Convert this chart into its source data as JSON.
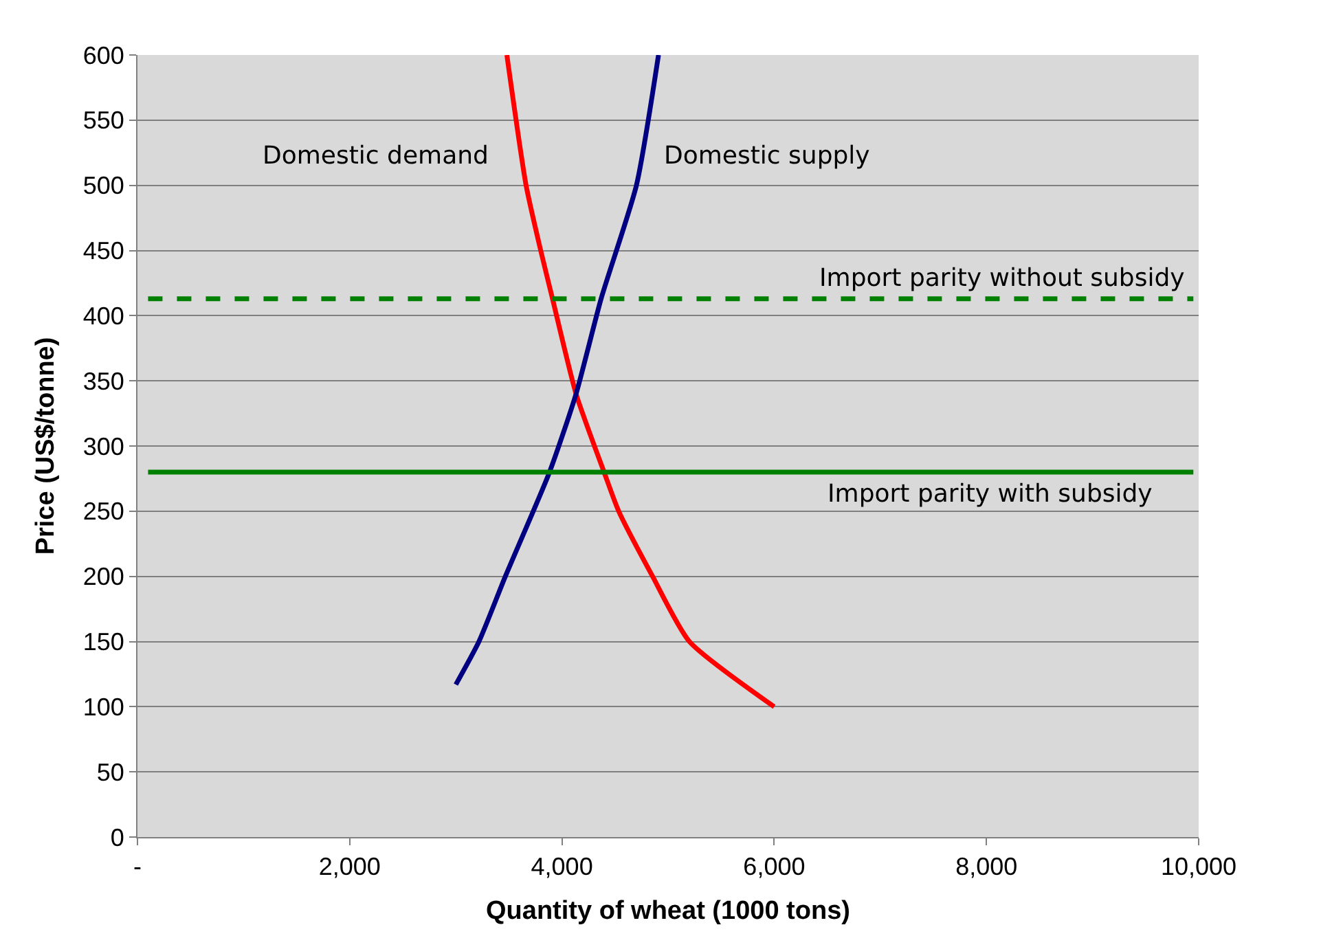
{
  "chart_data": {
    "type": "line",
    "xlabel": "Quantity of wheat (1000 tons)",
    "ylabel": "Price (US$/tonne)",
    "series": [
      {
        "name": "Domestic demand",
        "color": "#ff0000",
        "x": [
          3481,
          3662,
          3800,
          3911,
          4133,
          4397,
          4535,
          4854,
          5201,
          6000
        ],
        "values": [
          600,
          500,
          450,
          413,
          340,
          280,
          250,
          200,
          150,
          100
        ]
      },
      {
        "name": "Domestic supply",
        "color": "#000080",
        "x": [
          3000,
          3218,
          3467,
          3883,
          4133,
          4369,
          4702,
          4910
        ],
        "values": [
          117,
          150,
          200,
          280,
          340,
          413,
          500,
          600
        ]
      }
    ],
    "ref_lines": [
      {
        "axis": "y",
        "value": 413,
        "label": "Import parity without subsidy",
        "color": "#008000",
        "line_style": "dashed"
      },
      {
        "axis": "y",
        "value": 280,
        "label": "Import parity with subsidy",
        "color": "#008000",
        "line_style": "solid"
      }
    ],
    "xlim": [
      0,
      10000
    ],
    "xticks": [
      {
        "value": 0,
        "label": "-"
      },
      {
        "value": 2000,
        "label": "2,000"
      },
      {
        "value": 4000,
        "label": "4,000"
      },
      {
        "value": 6000,
        "label": "6,000"
      },
      {
        "value": 8000,
        "label": "8,000"
      },
      {
        "value": 10000,
        "label": "10,000"
      }
    ],
    "ylim": [
      0,
      600
    ],
    "yticks": [
      0,
      50,
      100,
      150,
      200,
      250,
      300,
      350,
      400,
      450,
      500,
      550,
      600
    ],
    "grid": "y",
    "legend": false,
    "marker": "none",
    "line_style": "solid"
  }
}
